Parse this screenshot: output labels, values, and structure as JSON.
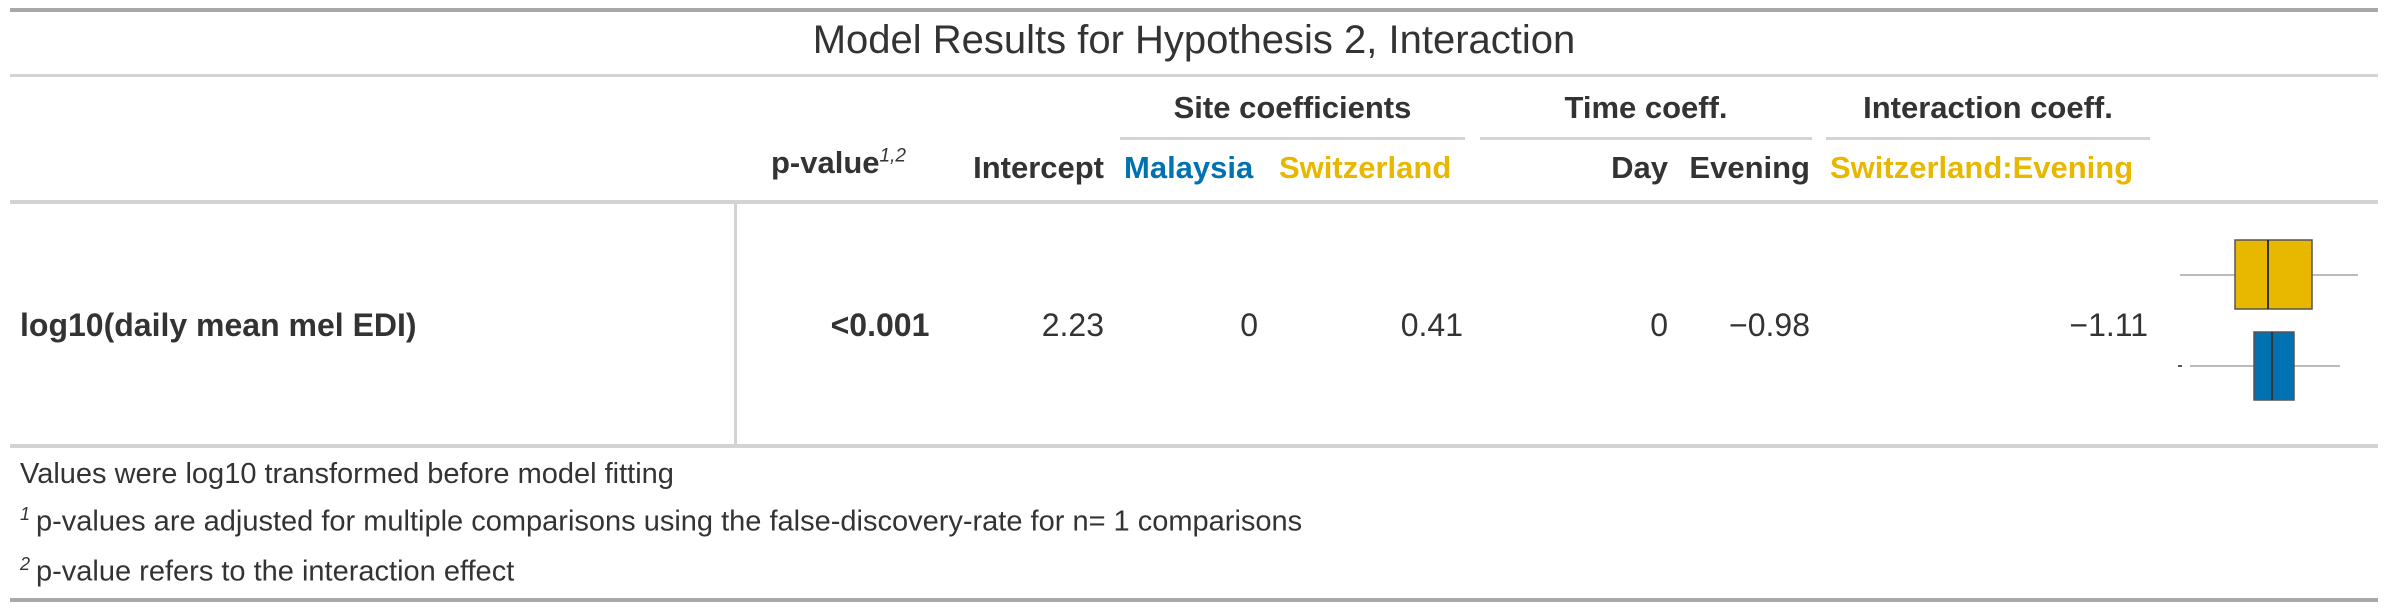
{
  "table": {
    "title": "Model Results for Hypothesis 2, Interaction",
    "spanners": {
      "site": "Site coefficients",
      "time": "Time coeff.",
      "interaction": "Interaction coeff."
    },
    "columns": {
      "pvalue": "p-value",
      "pvalue_marks": "1,2",
      "intercept": "Intercept",
      "malaysia": "Malaysia",
      "switzerland": "Switzerland",
      "day": "Day",
      "evening": "Evening",
      "interaction": "Switzerland:Evening"
    },
    "row": {
      "label": "log10(daily mean mel EDI)",
      "pvalue": "<0.001",
      "intercept": "2.23",
      "malaysia": "0",
      "switzerland": "0.41",
      "day": "0",
      "evening": "−0.98",
      "interaction": "−1.11"
    },
    "footnotes": {
      "note": "Values were log10 transformed before model fitting",
      "fn1_mark": "1",
      "fn1": "p-values are adjusted for multiple comparisons using the false-discovery-rate for n= 1 comparisons",
      "fn2_mark": "2",
      "fn2": "p-value refers to the interaction effect"
    },
    "colors": {
      "malaysia": "#0072B2",
      "switzerland": "#E8B800",
      "rule": "#d3d3d3",
      "top_rule": "#a8a8a8",
      "text": "#333333"
    }
  }
}
